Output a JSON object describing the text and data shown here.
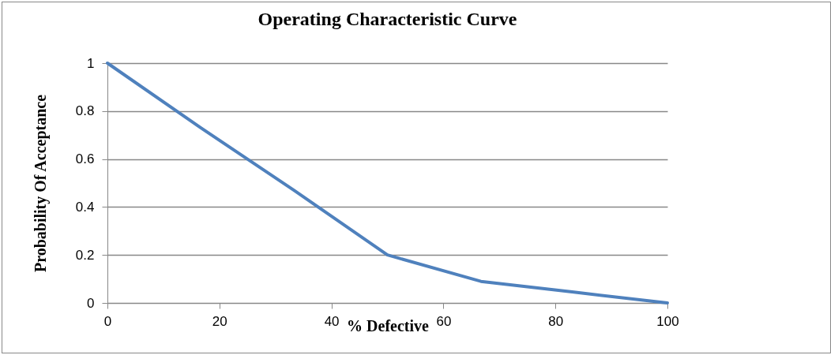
{
  "chart_data": {
    "type": "line",
    "title": "Operating Characteristic Curve",
    "xlabel": "%  Defective",
    "ylabel": "Probability Of Acceptance",
    "x": [
      0,
      16.7,
      33.3,
      50,
      66.7,
      83.3,
      100
    ],
    "series": [
      {
        "color": "#4f81bd",
        "values": [
          1,
          0.73,
          0.47,
          0.2,
          0.09,
          0.045,
          0
        ]
      }
    ],
    "xlim": [
      0,
      100
    ],
    "xticks": [
      0,
      20,
      40,
      60,
      80,
      100
    ],
    "ylim": [
      0,
      1
    ],
    "yticks": [
      0,
      0.2,
      0.4,
      0.6,
      0.8,
      1
    ],
    "grid": "y",
    "legend": false,
    "marker": "none",
    "line_style": "solid"
  }
}
